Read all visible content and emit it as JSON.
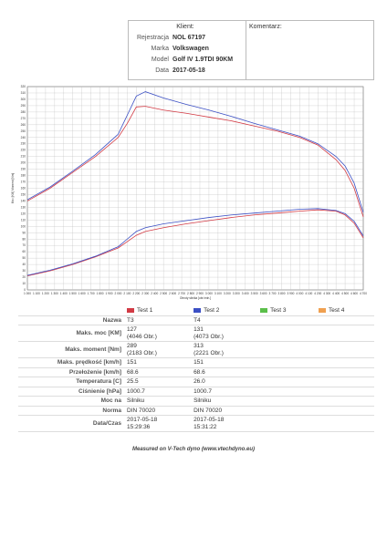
{
  "header": {
    "client_label": "Klient:",
    "comment_label": "Komentarz:",
    "fields": [
      {
        "label": "Rejestracja",
        "value": "NOL 67197"
      },
      {
        "label": "Marka",
        "value": "Volkswagen"
      },
      {
        "label": "Model",
        "value": "Golf IV 1.9TDI 90KM"
      },
      {
        "label": "Data",
        "value": "2017-05-18"
      }
    ]
  },
  "chart_data": {
    "type": "line",
    "x_label": "Obroty silnika [obr./min.]",
    "y_label": "Moc [KM] Moment [Nm]",
    "x": [
      1000,
      1250,
      1500,
      1750,
      2000,
      2100,
      2200,
      2300,
      2500,
      2750,
      3000,
      3250,
      3500,
      3750,
      4000,
      4200,
      4400,
      4500,
      4600,
      4700
    ],
    "series": [
      {
        "color": "#d23a44",
        "values": [
          140,
          160,
          185,
          210,
          240,
          262,
          288,
          289,
          283,
          278,
          272,
          266,
          258,
          250,
          240,
          228,
          205,
          188,
          160,
          115
        ]
      },
      {
        "color": "#3b4fc4",
        "values": [
          142,
          162,
          187,
          213,
          245,
          275,
          305,
          312,
          302,
          292,
          283,
          273,
          262,
          252,
          242,
          230,
          210,
          195,
          168,
          122
        ]
      },
      {
        "color": "#d23a44",
        "values": [
          22,
          30,
          40,
          52,
          66,
          76,
          86,
          92,
          98,
          104,
          109,
          114,
          118,
          121,
          124,
          126,
          124,
          118,
          105,
          82
        ]
      },
      {
        "color": "#3b4fc4",
        "values": [
          23,
          31,
          41,
          53,
          68,
          80,
          92,
          98,
          104,
          109,
          114,
          118,
          121,
          124,
          127,
          128,
          125,
          120,
          108,
          85
        ]
      }
    ],
    "xlim": [
      1000,
      4700
    ],
    "ylim": [
      0,
      320
    ],
    "grid": true,
    "xticks": [
      {
        "value": 1000,
        "label": "1 000"
      },
      {
        "value": 1100,
        "label": "1 100"
      },
      {
        "value": 1200,
        "label": "1 200"
      },
      {
        "value": 1300,
        "label": "1 300"
      },
      {
        "value": 1400,
        "label": "1 400"
      },
      {
        "value": 1500,
        "label": "1 500"
      },
      {
        "value": 1600,
        "label": "1 600"
      },
      {
        "value": 1700,
        "label": "1 700"
      },
      {
        "value": 1800,
        "label": "1 800"
      },
      {
        "value": 1900,
        "label": "1 900"
      },
      {
        "value": 2000,
        "label": "2 000"
      },
      {
        "value": 2100,
        "label": "2 100"
      },
      {
        "value": 2200,
        "label": "2 200"
      },
      {
        "value": 2300,
        "label": "2 300"
      },
      {
        "value": 2400,
        "label": "2 400"
      },
      {
        "value": 2500,
        "label": "2 500"
      },
      {
        "value": 2600,
        "label": "2 600"
      },
      {
        "value": 2700,
        "label": "2 700"
      },
      {
        "value": 2800,
        "label": "2 800"
      },
      {
        "value": 2900,
        "label": "2 900"
      },
      {
        "value": 3000,
        "label": "3 000"
      },
      {
        "value": 3100,
        "label": "3 100"
      },
      {
        "value": 3200,
        "label": "3 200"
      },
      {
        "value": 3300,
        "label": "3 300"
      },
      {
        "value": 3400,
        "label": "3 400"
      },
      {
        "value": 3500,
        "label": "3 500"
      },
      {
        "value": 3600,
        "label": "3 600"
      },
      {
        "value": 3700,
        "label": "3 700"
      },
      {
        "value": 3800,
        "label": "3 800"
      },
      {
        "value": 3900,
        "label": "3 900"
      },
      {
        "value": 4000,
        "label": "4 000"
      },
      {
        "value": 4100,
        "label": "4 100"
      },
      {
        "value": 4200,
        "label": "4 200"
      },
      {
        "value": 4300,
        "label": "4 300"
      },
      {
        "value": 4400,
        "label": "4 400"
      },
      {
        "value": 4500,
        "label": "4 500"
      },
      {
        "value": 4600,
        "label": "4 600"
      },
      {
        "value": 4700,
        "label": "4 700"
      }
    ],
    "yticks": [
      0,
      10,
      20,
      30,
      40,
      50,
      60,
      70,
      80,
      90,
      100,
      110,
      120,
      130,
      140,
      150,
      160,
      170,
      180,
      190,
      200,
      210,
      220,
      230,
      240,
      250,
      260,
      270,
      280,
      290,
      300,
      310,
      320
    ]
  },
  "table": {
    "columns": [
      "Test 1",
      "Test 2",
      "Test 3",
      "Test 4"
    ],
    "column_colors": [
      "#d23a44",
      "#3b4fc4",
      "#5bbf4a",
      "#f0a050"
    ],
    "rows": [
      {
        "label": "Nazwa",
        "cells": [
          [
            "T3"
          ],
          [
            "T4"
          ]
        ]
      },
      {
        "label": "Maks. moc [KM]",
        "cells": [
          [
            "127",
            "(4046 Obr.)"
          ],
          [
            "131",
            "(4073 Obr.)"
          ]
        ]
      },
      {
        "label": "Maks. moment [Nm]",
        "cells": [
          [
            "289",
            "(2183 Obr.)"
          ],
          [
            "313",
            "(2221 Obr.)"
          ]
        ]
      },
      {
        "label": "Maks. prędkość [km/h]",
        "cells": [
          [
            "151"
          ],
          [
            "151"
          ]
        ]
      },
      {
        "label": "Przełożenie [km/h]",
        "cells": [
          [
            "68.6"
          ],
          [
            "68.6"
          ]
        ]
      },
      {
        "label": "Temperatura [C]",
        "cells": [
          [
            "25.5"
          ],
          [
            "26.0"
          ]
        ]
      },
      {
        "label": "Ciśnienie [hPa]",
        "cells": [
          [
            "1000.7"
          ],
          [
            "1000.7"
          ]
        ]
      },
      {
        "label": "Moc na",
        "cells": [
          [
            "Silniku"
          ],
          [
            "Silniku"
          ]
        ]
      },
      {
        "label": "Norma",
        "cells": [
          [
            "DIN 70020"
          ],
          [
            "DIN 70020"
          ]
        ]
      },
      {
        "label": "Data/Czas",
        "cells": [
          [
            "2017-05-18",
            "15:29:36"
          ],
          [
            "2017-05-18",
            "15:31:22"
          ]
        ]
      }
    ]
  },
  "footer": "Measured on V-Tech dyno (www.vtechdyno.eu)"
}
